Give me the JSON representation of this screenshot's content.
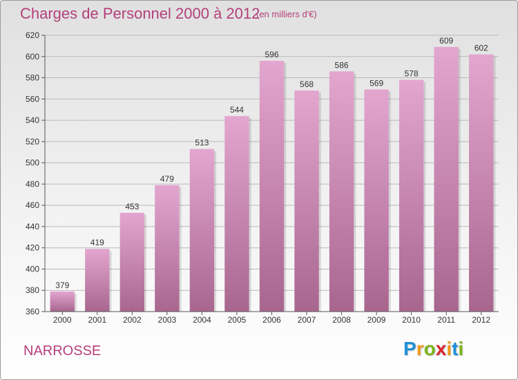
{
  "title": "Charges de Personnel 2000 à 2012",
  "subtitle": "(en milliers d'€)",
  "location": "NARROSSE",
  "logo": {
    "letters": [
      "P",
      "r",
      "o",
      "x",
      "i",
      "t",
      "i"
    ],
    "colors": [
      "#1e90d6",
      "#f29a1b",
      "#7ab51d",
      "#d8232a",
      "#f29a1b",
      "#1e90d6",
      "#7ab51d"
    ]
  },
  "colors": {
    "title": "#b4407a",
    "bar_top": "#e3a6cf",
    "bar_bottom": "#a8668f",
    "axis_text": "#333333"
  },
  "chart_data": {
    "type": "bar",
    "title": "Charges de Personnel 2000 à 2012",
    "subtitle": "(en milliers d'€)",
    "categories": [
      "2000",
      "2001",
      "2002",
      "2003",
      "2004",
      "2005",
      "2006",
      "2007",
      "2008",
      "2009",
      "2010",
      "2011",
      "2012"
    ],
    "values": [
      379,
      419,
      453,
      479,
      513,
      544,
      596,
      568,
      586,
      569,
      578,
      609,
      602
    ],
    "ylim": [
      360,
      620
    ],
    "yticks": [
      360,
      380,
      400,
      420,
      440,
      460,
      480,
      500,
      520,
      540,
      560,
      580,
      600,
      620
    ],
    "grid": true,
    "data_labels": true
  }
}
